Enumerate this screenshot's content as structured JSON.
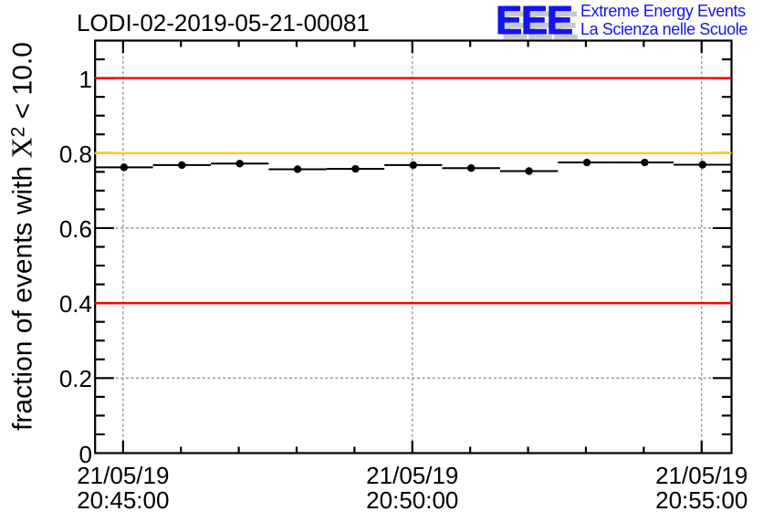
{
  "header": {
    "logo": {
      "letters": "EEE",
      "line1": "Extreme Energy Events",
      "line2": "La Scienza nelle Scuole",
      "blue": "#1414ee",
      "shadow": "#c9c9c9"
    }
  },
  "chart_data": {
    "type": "scatter",
    "title": "LODI-02-2019-05-21-00081",
    "xlabel": "",
    "ylabel": "fraction of events with X^2 < 10.0",
    "ylabel_parts": {
      "prefix": "fraction of events with ",
      "variable": "X",
      "sup": "2",
      "suffix": " < 10.0"
    },
    "ylim": [
      0,
      1.1
    ],
    "x_span_seconds": 660,
    "x_bin_seconds": 60,
    "grid": true,
    "legend": null,
    "x_ticks": [
      {
        "s": 29,
        "date": "21/05/19",
        "time": "20:45:00"
      },
      {
        "s": 329,
        "date": "21/05/19",
        "time": "20:50:00"
      },
      {
        "s": 629,
        "date": "21/05/19",
        "time": "20:55:00"
      }
    ],
    "x_minor_step_s": 60,
    "y_ticks": [
      {
        "v": 0.0,
        "label": "0"
      },
      {
        "v": 0.2,
        "label": "0.2"
      },
      {
        "v": 0.4,
        "label": "0.4"
      },
      {
        "v": 0.6,
        "label": "0.6"
      },
      {
        "v": 0.8,
        "label": "0.8"
      },
      {
        "v": 1.0,
        "label": "1"
      }
    ],
    "y_minor_step": 0.05,
    "points": [
      {
        "s": 30,
        "v": 0.762
      },
      {
        "s": 90,
        "v": 0.768
      },
      {
        "s": 150,
        "v": 0.772
      },
      {
        "s": 210,
        "v": 0.757
      },
      {
        "s": 270,
        "v": 0.758
      },
      {
        "s": 330,
        "v": 0.768
      },
      {
        "s": 390,
        "v": 0.76
      },
      {
        "s": 450,
        "v": 0.752
      },
      {
        "s": 510,
        "v": 0.775
      },
      {
        "s": 570,
        "v": 0.775
      },
      {
        "s": 630,
        "v": 0.769
      }
    ],
    "hlines": [
      {
        "v": 1.0,
        "color": "#ff0000"
      },
      {
        "v": 0.8,
        "color": "#ffcc00"
      },
      {
        "v": 0.4,
        "color": "#ff0000"
      }
    ],
    "colors": {
      "axis": "#000000",
      "grid": "#909090",
      "marker": "#000000"
    }
  }
}
